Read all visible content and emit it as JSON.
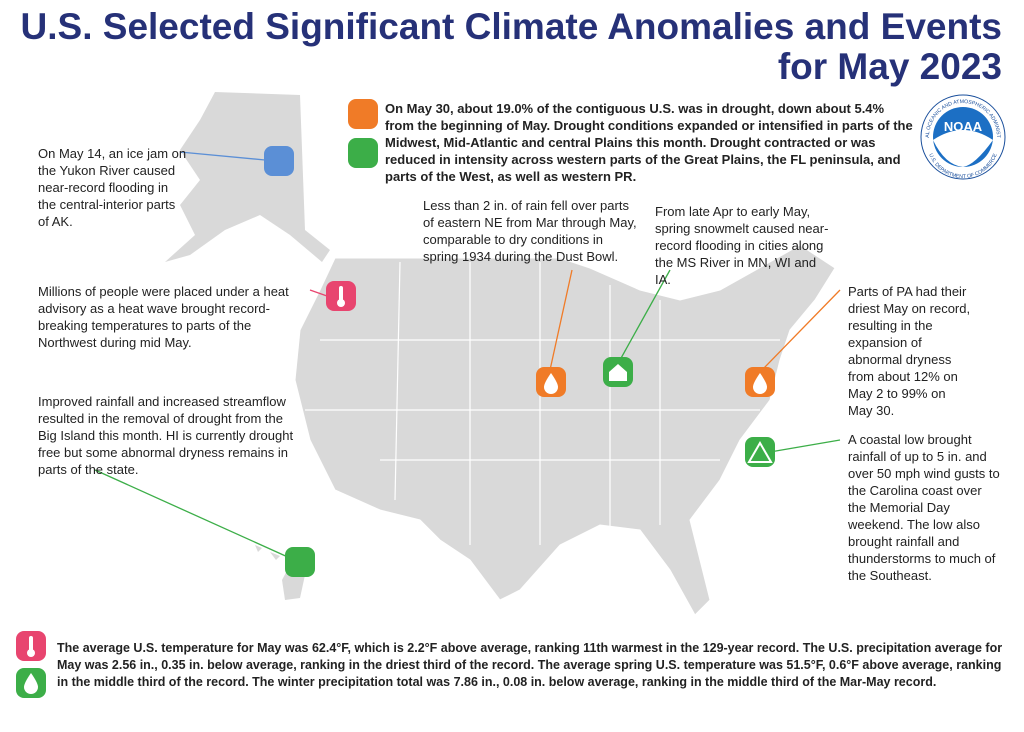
{
  "title": [
    "U.S. Selected Significant Climate Anomalies and Events",
    "for May 2023"
  ],
  "logo": {
    "name": "NOAA",
    "ring_top": "NATIONAL OCEANIC AND ATMOSPHERIC ADMINISTRATION",
    "ring_bottom": "U.S. DEPARTMENT OF COMMERCE"
  },
  "drought_summary": "On May 30, about 19.0% of the contiguous U.S. was in drought, down about 5.4% from the beginning of May. Drought conditions expanded or intensified in parts of the Midwest, Mid-Atlantic and central Plains this month. Drought contracted or was reduced in intensity across western parts of the Great Plains, the FL peninsula, and parts of the West, as well as western PR.",
  "annotations": [
    "On May 14, an ice jam on the Yukon River caused near-record flooding in the central-interior parts of AK.",
    "Millions of people were placed under a heat advisory as a heat wave brought record-breaking temperatures to parts of the Northwest during mid May.",
    "Improved rainfall and increased streamflow resulted in the removal of drought from the Big Island this month. HI is currently drought free but some abnormal dryness remains in parts of the state.",
    "Less than 2 in. of rain fell over parts of eastern NE from Mar through May, comparable to dry conditions in spring 1934 during the Dust Bowl.",
    "From late Apr to early May, spring snowmelt caused near-record flooding in cities along the MS River in MN, WI and IA.",
    "Parts of PA had their driest May on record, resulting in the expansion of abnormal dryness from about 12% on May 2 to 99% on May 30.",
    "A coastal low brought rainfall of up to 5 in. and over 50 mph wind gusts to the Carolina coast over the Memorial Day weekend. The low also brought rainfall and thunderstorms to much of the Southeast."
  ],
  "footer": "The average U.S. temperature for May was 62.4°F, which is 2.2°F above average, ranking 11th warmest in the 129-year record. The U.S. precipitation average for May was 2.56 in., 0.35 in. below average, ranking in the driest third of the record. The average spring U.S. temperature was 51.5°F, 0.6°F above average, ranking in the middle third of the record. The winter precipitation total was 7.86 in., 0.08 in. below average, ranking in the middle third of the Mar-May record."
}
